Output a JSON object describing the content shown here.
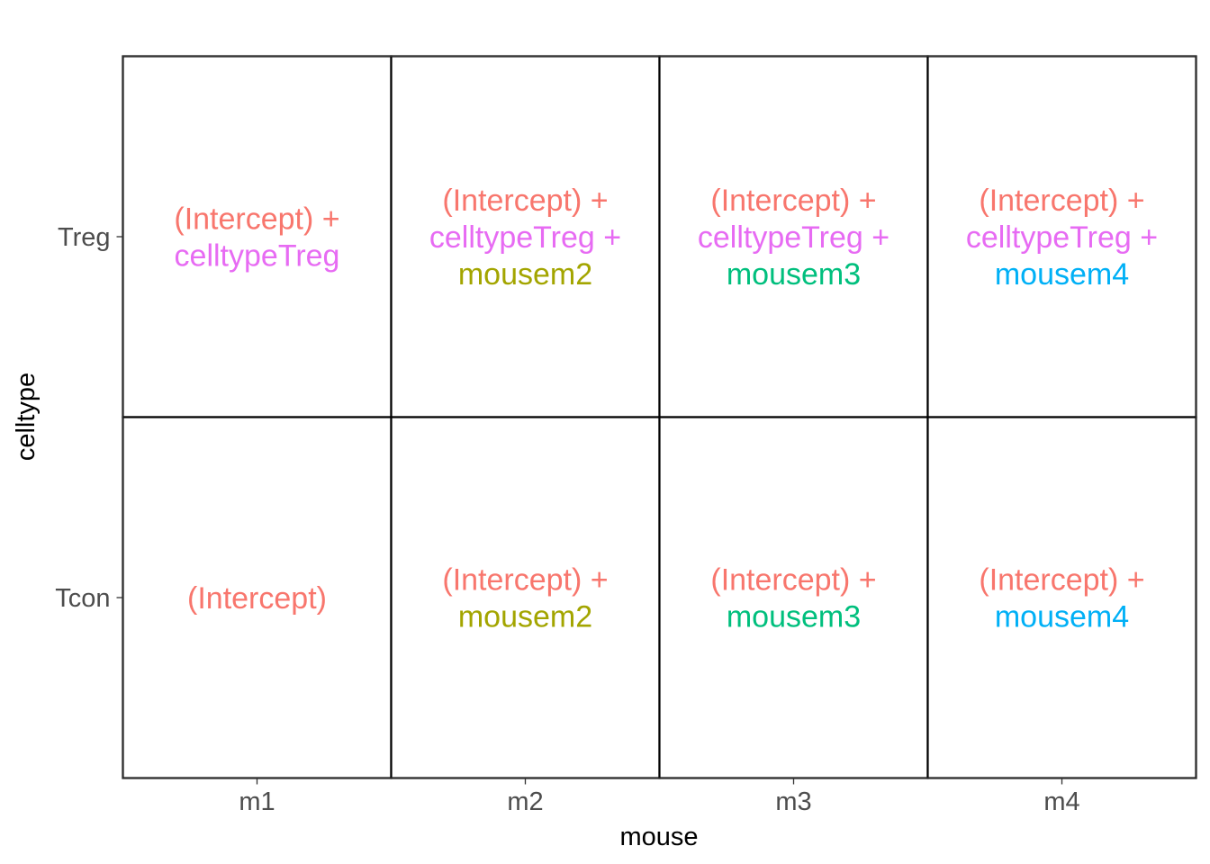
{
  "chart_data": {
    "type": "table",
    "xlabel": "mouse",
    "ylabel": "celltype",
    "x_categories": [
      "m1",
      "m2",
      "m3",
      "m4"
    ],
    "y_categories": [
      "Tcon",
      "Treg"
    ],
    "grid": false,
    "term_colors": {
      "(Intercept)": "#F8766D",
      "celltypeTreg": "#E76BF3",
      "mousem2": "#A3A500",
      "mousem3": "#00BF7D",
      "mousem4": "#00B0F6"
    },
    "cells": [
      {
        "x": "m1",
        "y": "Treg",
        "terms": [
          "(Intercept)",
          "celltypeTreg"
        ]
      },
      {
        "x": "m2",
        "y": "Treg",
        "terms": [
          "(Intercept)",
          "celltypeTreg",
          "mousem2"
        ]
      },
      {
        "x": "m3",
        "y": "Treg",
        "terms": [
          "(Intercept)",
          "celltypeTreg",
          "mousem3"
        ]
      },
      {
        "x": "m4",
        "y": "Treg",
        "terms": [
          "(Intercept)",
          "celltypeTreg",
          "mousem4"
        ]
      },
      {
        "x": "m1",
        "y": "Tcon",
        "terms": [
          "(Intercept)"
        ]
      },
      {
        "x": "m2",
        "y": "Tcon",
        "terms": [
          "(Intercept)",
          "mousem2"
        ]
      },
      {
        "x": "m3",
        "y": "Tcon",
        "terms": [
          "(Intercept)",
          "mousem3"
        ]
      },
      {
        "x": "m4",
        "y": "Tcon",
        "terms": [
          "(Intercept)",
          "mousem4"
        ]
      }
    ]
  }
}
